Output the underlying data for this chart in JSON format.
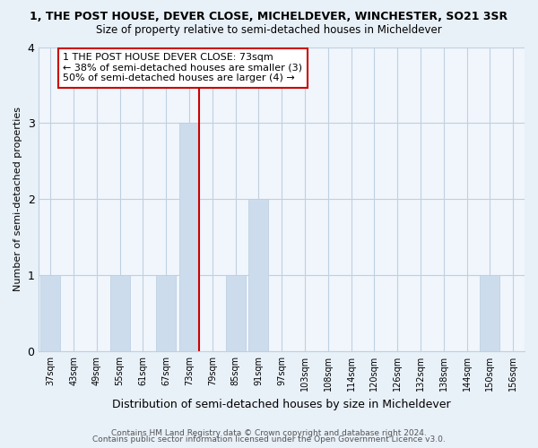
{
  "title": "1, THE POST HOUSE, DEVER CLOSE, MICHELDEVER, WINCHESTER, SO21 3SR",
  "subtitle": "Size of property relative to semi-detached houses in Micheldever",
  "xlabel": "Distribution of semi-detached houses by size in Micheldever",
  "ylabel": "Number of semi-detached properties",
  "categories": [
    "37sqm",
    "43sqm",
    "49sqm",
    "55sqm",
    "61sqm",
    "67sqm",
    "73sqm",
    "79sqm",
    "85sqm",
    "91sqm",
    "97sqm",
    "103sqm",
    "108sqm",
    "114sqm",
    "120sqm",
    "126sqm",
    "132sqm",
    "138sqm",
    "144sqm",
    "150sqm",
    "156sqm"
  ],
  "values": [
    1,
    0,
    0,
    1,
    0,
    1,
    3,
    0,
    1,
    2,
    0,
    0,
    0,
    0,
    0,
    0,
    0,
    0,
    0,
    1,
    0
  ],
  "bar_color": "#ccdcec",
  "bar_edgecolor": "#b8cce0",
  "highlight_index": 6,
  "highlight_line_color": "#cc0000",
  "ylim": [
    0,
    4
  ],
  "yticks": [
    0,
    1,
    2,
    3,
    4
  ],
  "annotation_lines": [
    "1 THE POST HOUSE DEVER CLOSE: 73sqm",
    "← 38% of semi-detached houses are smaller (3)",
    "50% of semi-detached houses are larger (4) →"
  ],
  "footer_line1": "Contains HM Land Registry data © Crown copyright and database right 2024.",
  "footer_line2": "Contains public sector information licensed under the Open Government Licence v3.0.",
  "bg_color": "#e8f0f8",
  "plot_bg_color": "#f0f6fc",
  "grid_color": "#c0d0e0"
}
